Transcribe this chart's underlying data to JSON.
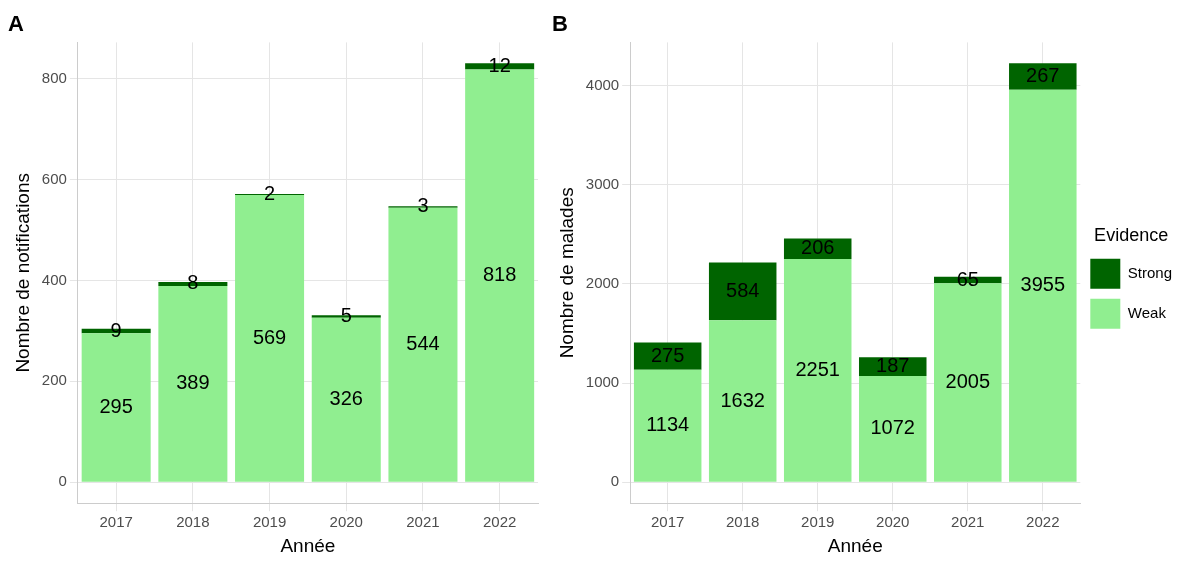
{
  "chart_data": [
    {
      "type": "bar",
      "title": "A",
      "xlabel": "Année",
      "ylabel": "Nombre de notifications",
      "categories": [
        "2017",
        "2018",
        "2019",
        "2020",
        "2021",
        "2022"
      ],
      "stacked": true,
      "data_labels": true,
      "grid": true,
      "legend": false,
      "ylim": [
        -41.5,
        871.5
      ],
      "yticks": [
        0,
        200,
        400,
        600,
        800
      ],
      "series": [
        {
          "color": "#90ee90",
          "values": [
            295,
            389,
            569,
            326,
            544,
            818
          ]
        },
        {
          "color": "#006400",
          "values": [
            9,
            8,
            2,
            5,
            3,
            12
          ]
        }
      ]
    },
    {
      "type": "bar",
      "title": "B",
      "xlabel": "Année",
      "ylabel": "Nombre de malades",
      "legend_title": "Evidence",
      "categories": [
        "2017",
        "2018",
        "2019",
        "2020",
        "2021",
        "2022"
      ],
      "stacked": true,
      "data_labels": true,
      "grid": true,
      "legend": "right",
      "ylim": [
        -211,
        4433
      ],
      "yticks": [
        0,
        1000,
        2000,
        3000,
        4000
      ],
      "series": [
        {
          "name": "Weak",
          "color": "#90ee90",
          "values": [
            1134,
            1632,
            2251,
            1072,
            2005,
            3955
          ]
        },
        {
          "name": "Strong",
          "color": "#006400",
          "values": [
            275,
            584,
            206,
            187,
            65,
            267
          ]
        }
      ]
    }
  ]
}
